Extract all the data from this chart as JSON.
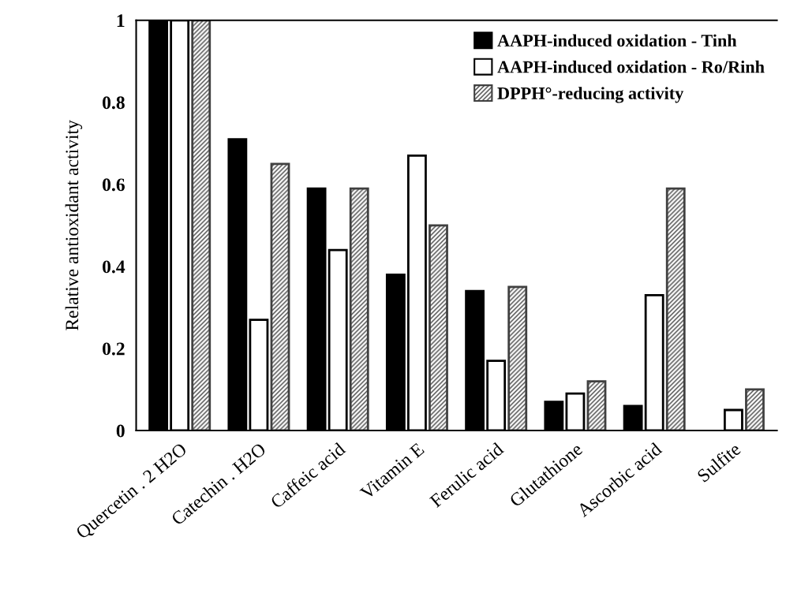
{
  "chart_data": {
    "type": "bar",
    "ylabel": "Relative antioxidant activity",
    "categories": [
      "Quercetin . 2 H2O",
      "Catechin . H2O",
      "Caffeic acid",
      "Vitamin E",
      "Ferulic acid",
      "Glutathione",
      "Ascorbic acid",
      "Sulfite"
    ],
    "series": [
      {
        "name": "AAPH-induced oxidation - Tinh",
        "color": "#000000",
        "values": [
          1,
          0.71,
          0.59,
          0.38,
          0.34,
          0.07,
          0.06,
          null
        ]
      },
      {
        "name": "AAPH-induced oxidation - Ro/Rinh",
        "color": "#ffffff",
        "values": [
          1,
          0.27,
          0.44,
          0.67,
          0.17,
          0.09,
          0.33,
          0.05
        ]
      },
      {
        "name": "DPPH°-reducing activity",
        "color": "#404040",
        "values": [
          1,
          0.65,
          0.59,
          0.5,
          0.35,
          0.12,
          0.59,
          0.1
        ]
      }
    ],
    "ylim": [
      0,
      1
    ],
    "yticks": [
      0,
      0.2,
      0.4,
      0.6,
      0.8,
      1
    ],
    "grid": false,
    "legend": "top right"
  }
}
